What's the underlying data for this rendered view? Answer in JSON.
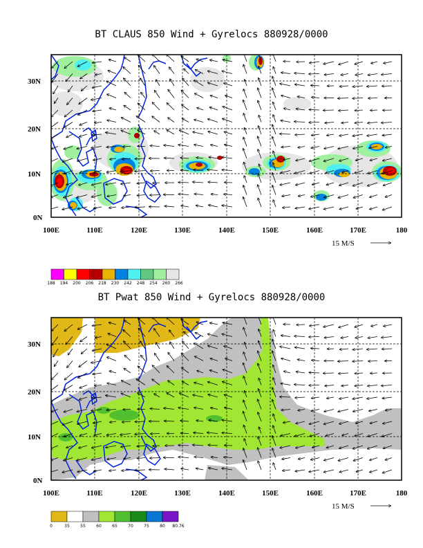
{
  "panels": [
    {
      "title": "BT CLAUS 850 Wind + Gyrelocs 880928/0000",
      "lat_labels": [
        "30N",
        "20N",
        "10N",
        "0N"
      ],
      "lon_labels": [
        "100E",
        "110E",
        "120E",
        "130E",
        "140E",
        "150E",
        "160E",
        "170E",
        "180"
      ],
      "vector_scale": "15 M/S",
      "colorbar": {
        "labels": [
          "188",
          "194",
          "200",
          "206",
          "218",
          "230",
          "242",
          "248",
          "254",
          "260",
          "266"
        ],
        "colors": [
          "#ff00ff",
          "#ffff00",
          "#ff0000",
          "#b40000",
          "#e8b400",
          "#0082e0",
          "#50f0f0",
          "#60c880",
          "#a0f0a0",
          "#e6e6e6"
        ]
      }
    },
    {
      "title": "BT Pwat 850 Wind + Gyrelocs 880928/0000",
      "lat_labels": [
        "30N",
        "20N",
        "10N",
        "0N"
      ],
      "lon_labels": [
        "100E",
        "110E",
        "120E",
        "130E",
        "140E",
        "150E",
        "160E",
        "170E",
        "180"
      ],
      "vector_scale": "15 M/S",
      "colorbar": {
        "labels": [
          "0",
          "35",
          "55",
          "60",
          "65",
          "70",
          "75",
          "80",
          "80.76"
        ],
        "colors": [
          "#e0b818",
          "#ffffff",
          "#c0c0c0",
          "#a0e632",
          "#50c030",
          "#1a8a1a",
          "#0a78d2",
          "#7a14c8"
        ]
      }
    }
  ],
  "map_extent": {
    "lon": [
      100,
      180
    ],
    "lat": [
      0,
      36
    ]
  }
}
